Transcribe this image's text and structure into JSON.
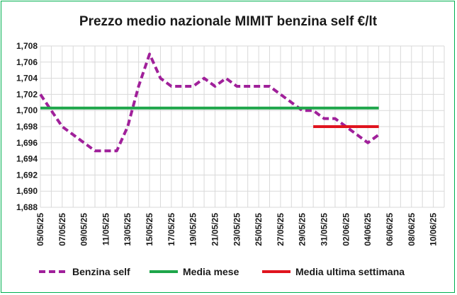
{
  "chart_data": {
    "type": "line",
    "title": "Prezzo medio nazionale MIMIT benzina self €/lt",
    "xlabel": "",
    "ylabel": "",
    "ylim": [
      1.688,
      1.708
    ],
    "yticks": [
      "1,688",
      "1,690",
      "1,692",
      "1,694",
      "1,696",
      "1,698",
      "1,700",
      "1,702",
      "1,704",
      "1,706",
      "1,708"
    ],
    "x_tick_labels": [
      "05/05/25",
      "07/05/25",
      "09/05/25",
      "11/05/25",
      "13/05/25",
      "15/05/25",
      "17/05/25",
      "19/05/25",
      "21/05/25",
      "23/05/25",
      "25/05/25",
      "27/05/25",
      "29/05/25",
      "31/05/25",
      "02/06/25",
      "04/06/25",
      "06/06/25",
      "08/06/25",
      "10/06/25"
    ],
    "x_range": [
      "05/05/25",
      "11/06/25"
    ],
    "grid": true,
    "legend_position": "bottom",
    "series": [
      {
        "name": "Benzina self",
        "style": "dashed",
        "color": "#a0209a",
        "x": [
          "05/05/25",
          "06/05/25",
          "07/05/25",
          "08/05/25",
          "09/05/25",
          "10/05/25",
          "11/05/25",
          "12/05/25",
          "13/05/25",
          "14/05/25",
          "15/05/25",
          "16/05/25",
          "17/05/25",
          "18/05/25",
          "19/05/25",
          "20/05/25",
          "21/05/25",
          "22/05/25",
          "23/05/25",
          "24/05/25",
          "25/05/25",
          "26/05/25",
          "27/05/25",
          "28/05/25",
          "29/05/25",
          "30/05/25",
          "31/05/25",
          "01/06/25",
          "02/06/25",
          "03/06/25",
          "04/06/25",
          "05/06/25"
        ],
        "values": [
          1.702,
          1.7,
          1.698,
          1.697,
          1.696,
          1.695,
          1.695,
          1.695,
          1.698,
          1.703,
          1.707,
          1.704,
          1.703,
          1.703,
          1.703,
          1.704,
          1.703,
          1.704,
          1.703,
          1.703,
          1.703,
          1.703,
          1.702,
          1.701,
          1.7,
          1.7,
          1.699,
          1.699,
          1.698,
          1.697,
          1.696,
          1.697
        ]
      },
      {
        "name": "Media mese",
        "style": "solid",
        "color": "#1ea64a",
        "x": [
          "05/05/25",
          "05/06/25"
        ],
        "values": [
          1.7003,
          1.7003
        ]
      },
      {
        "name": "Media ultima settimana",
        "style": "solid",
        "color": "#e0141e",
        "x": [
          "30/05/25",
          "05/06/25"
        ],
        "values": [
          1.698,
          1.698
        ]
      }
    ]
  }
}
